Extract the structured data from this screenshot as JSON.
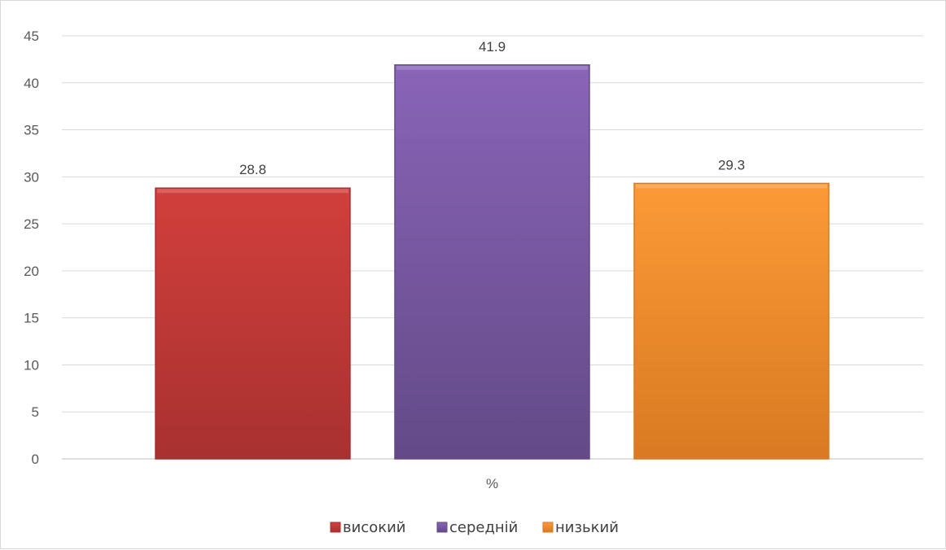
{
  "chart_data": {
    "type": "bar",
    "categories": [
      "%"
    ],
    "series": [
      {
        "name": "високий",
        "values": [
          28.8
        ],
        "color": "#d23f3c",
        "color_dark": "#a83130"
      },
      {
        "name": "середній",
        "values": [
          41.9
        ],
        "color": "#8a64b8",
        "color_dark": "#634a87"
      },
      {
        "name": "низький",
        "values": [
          29.3
        ],
        "color": "#fb9a36",
        "color_dark": "#d97a22"
      }
    ],
    "value_labels": [
      "28.8",
      "41.9",
      "29.3"
    ],
    "y_ticks": [
      "0",
      "5",
      "10",
      "15",
      "20",
      "25",
      "30",
      "35",
      "40",
      "45"
    ],
    "ylim": [
      0,
      45
    ],
    "grid": true,
    "legend_position": "bottom",
    "title": "",
    "xlabel": "",
    "ylabel": ""
  }
}
